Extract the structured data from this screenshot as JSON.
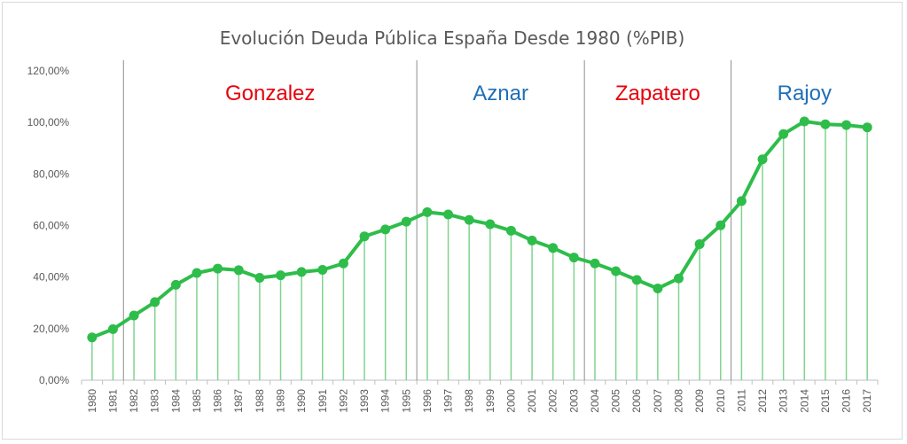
{
  "chart_data": {
    "type": "line",
    "title": "Evolución Deuda Pública España Desde 1980 (%PIB)",
    "xlabel": "",
    "ylabel": "",
    "ylim": [
      0,
      120
    ],
    "yticks": [
      "0,00%",
      "20,00%",
      "40,00%",
      "60,00%",
      "80,00%",
      "100,00%",
      "120,00%"
    ],
    "grid": false,
    "categories": [
      "1980",
      "1981",
      "1982",
      "1983",
      "1984",
      "1985",
      "1986",
      "1987",
      "1988",
      "1989",
      "1990",
      "1991",
      "1992",
      "1993",
      "1994",
      "1995",
      "1996",
      "1997",
      "1998",
      "1999",
      "2000",
      "2001",
      "2002",
      "2003",
      "2004",
      "2005",
      "2006",
      "2007",
      "2008",
      "2009",
      "2010",
      "2011",
      "2012",
      "2013",
      "2014",
      "2015",
      "2016",
      "2017"
    ],
    "series": [
      {
        "values": [
          16.6,
          19.8,
          25.1,
          30.3,
          37.0,
          41.6,
          43.3,
          42.7,
          39.7,
          40.7,
          42.0,
          42.8,
          45.3,
          55.8,
          58.5,
          61.5,
          65.2,
          64.3,
          62.2,
          60.5,
          58.0,
          54.2,
          51.3,
          47.6,
          45.3,
          42.3,
          38.9,
          35.6,
          39.5,
          52.8,
          60.1,
          69.5,
          85.7,
          95.5,
          100.4,
          99.3,
          99.0,
          98.1
        ],
        "color": "#2ebd4a"
      }
    ],
    "eras": [
      {
        "label": "Gonzalez",
        "start": "1982",
        "color": "#e8000b"
      },
      {
        "label": "Aznar",
        "start": "1996",
        "color": "#1f6fb8"
      },
      {
        "label": "Zapatero",
        "start": "2004",
        "color": "#e8000b"
      },
      {
        "label": "Rajoy",
        "start": "2011",
        "color": "#1f6fb8"
      }
    ]
  }
}
